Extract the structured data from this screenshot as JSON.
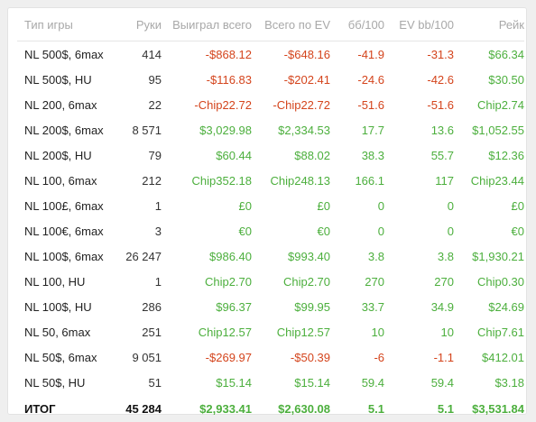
{
  "headers": [
    "Тип игры",
    "Руки",
    "Выиграл всего",
    "Всего по EV",
    "бб/100",
    "EV bb/100",
    "Рейк"
  ],
  "rows": [
    {
      "game": "NL 500$, 6max",
      "hands": "414",
      "won": "-$868.12",
      "ev": "-$648.16",
      "bb100": "-41.9",
      "evbb100": "-31.3",
      "rake": "$66.34"
    },
    {
      "game": "NL 500$, HU",
      "hands": "95",
      "won": "-$116.83",
      "ev": "-$202.41",
      "bb100": "-24.6",
      "evbb100": "-42.6",
      "rake": "$30.50"
    },
    {
      "game": "NL 200, 6max",
      "hands": "22",
      "won": "-Chip22.72",
      "ev": "-Chip22.72",
      "bb100": "-51.6",
      "evbb100": "-51.6",
      "rake": "Chip2.74"
    },
    {
      "game": "NL 200$, 6max",
      "hands": "8 571",
      "won": "$3,029.98",
      "ev": "$2,334.53",
      "bb100": "17.7",
      "evbb100": "13.6",
      "rake": "$1,052.55"
    },
    {
      "game": "NL 200$, HU",
      "hands": "79",
      "won": "$60.44",
      "ev": "$88.02",
      "bb100": "38.3",
      "evbb100": "55.7",
      "rake": "$12.36"
    },
    {
      "game": "NL 100, 6max",
      "hands": "212",
      "won": "Chip352.18",
      "ev": "Chip248.13",
      "bb100": "166.1",
      "evbb100": "117",
      "rake": "Chip23.44"
    },
    {
      "game": "NL 100£, 6max",
      "hands": "1",
      "won": "£0",
      "ev": "£0",
      "bb100": "0",
      "evbb100": "0",
      "rake": "£0"
    },
    {
      "game": "NL 100€, 6max",
      "hands": "3",
      "won": "€0",
      "ev": "€0",
      "bb100": "0",
      "evbb100": "0",
      "rake": "€0"
    },
    {
      "game": "NL 100$, 6max",
      "hands": "26 247",
      "won": "$986.40",
      "ev": "$993.40",
      "bb100": "3.8",
      "evbb100": "3.8",
      "rake": "$1,930.21"
    },
    {
      "game": "NL 100, HU",
      "hands": "1",
      "won": "Chip2.70",
      "ev": "Chip2.70",
      "bb100": "270",
      "evbb100": "270",
      "rake": "Chip0.30"
    },
    {
      "game": "NL 100$, HU",
      "hands": "286",
      "won": "$96.37",
      "ev": "$99.95",
      "bb100": "33.7",
      "evbb100": "34.9",
      "rake": "$24.69"
    },
    {
      "game": "NL 50, 6max",
      "hands": "251",
      "won": "Chip12.57",
      "ev": "Chip12.57",
      "bb100": "10",
      "evbb100": "10",
      "rake": "Chip7.61"
    },
    {
      "game": "NL 50$, 6max",
      "hands": "9 051",
      "won": "-$269.97",
      "ev": "-$50.39",
      "bb100": "-6",
      "evbb100": "-1.1",
      "rake": "$412.01"
    },
    {
      "game": "NL 50$, HU",
      "hands": "51",
      "won": "$15.14",
      "ev": "$15.14",
      "bb100": "59.4",
      "evbb100": "59.4",
      "rake": "$3.18"
    }
  ],
  "total": {
    "game": "ИТОГ",
    "hands": "45 284",
    "won": "$2,933.41",
    "ev": "$2,630.08",
    "bb100": "5.1",
    "evbb100": "5.1",
    "rake": "$3,531.84"
  },
  "colors": {
    "negative": "#d4441c",
    "positive": "#4caf3d",
    "header": "#a8a8a8"
  }
}
